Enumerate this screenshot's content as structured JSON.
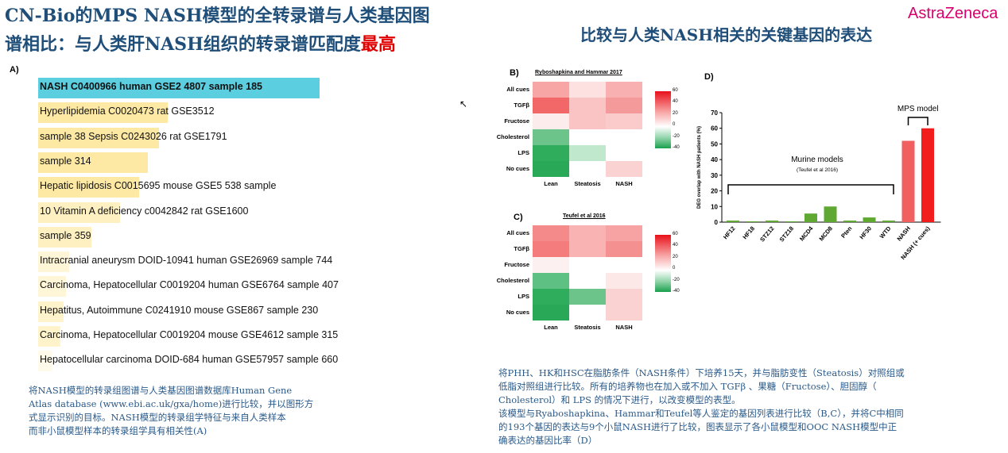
{
  "header": {
    "left_title_line1": "CN-Bio的MPS NASH模型的全转录谱与人类基因图",
    "left_title_line2": "谱相比：与人类肝NASH组织的转录谱匹配度",
    "left_title_highlight": "最高",
    "right_title": "比较与人类NASH相关的关键基因的表达",
    "logo": "AstraZeneca"
  },
  "panel_a": {
    "label": "A)",
    "rows": [
      {
        "text": "NASH C0400966 human GSE2 4807 sample 185",
        "fill": 1.0,
        "color": "#5bcfe0"
      },
      {
        "text": "Hyperlipidemia C0020473 rat GSE3512",
        "fill": 0.46,
        "color": "#fde9a4"
      },
      {
        "text": "sample 38  Sepsis C0243026 rat GSE1791",
        "fill": 0.43,
        "color": "#fde9a4"
      },
      {
        "text": "sample 314",
        "fill": 0.39,
        "color": "#fde9a4"
      },
      {
        "text": "Hepatic lipidosis C0015695 mouse GSE5 538 sample",
        "fill": 0.36,
        "color": "#fde9a4"
      },
      {
        "text": "10  Vitamin A deficiency c0042842 rat GSE1600",
        "fill": 0.29,
        "color": "#fef0c0"
      },
      {
        "text": "sample 359",
        "fill": 0.19,
        "color": "#fef0c0"
      },
      {
        "text": "Intracranial aneurysm DOID-10941 human GSE26969 sample 744",
        "fill": 0.11,
        "color": "#fff6d8"
      },
      {
        "text": "Carcinoma, Hepatocellular C0019204 human GSE6764 sample 407",
        "fill": 0.1,
        "color": "#fff6d8"
      },
      {
        "text": "Hepatitus, Autoimmune C0241910 mouse GSE867 sample 230",
        "fill": 0.09,
        "color": "#fff3cc"
      },
      {
        "text": "Carcinoma, Hepatocellular C0019204 mouse GSE4612 sample 315",
        "fill": 0.08,
        "color": "#fff3cc"
      },
      {
        "text": "Hepatocellular carcinoma DOID-684 human GSE57957 sample 660",
        "fill": 0.05,
        "color": "#fffaea"
      }
    ],
    "caption": [
      "将NASH模型的转录组图谱与人类基因图谱数据库Human Gene",
      "Atlas database (www.ebi.ac.uk/gxa/home)进行比较，并以图形方",
      "式显示识别的目标。NASH模型的转录组学特征与来自人类样本",
      "而非小鼠模型样本的转录组学具有相关性(A)"
    ]
  },
  "panel_b": {
    "label": "B)",
    "title": "Ryboshapkina and Hammar 2017",
    "rows": [
      "All cues",
      "TGFβ",
      "Fructose",
      "Cholesterol",
      "LPS",
      "No cues"
    ],
    "cols": [
      "Lean",
      "Steatosis",
      "NASH"
    ],
    "colors": [
      [
        "#f7a5a5",
        "#fde0e0",
        "#f8b0b0"
      ],
      [
        "#f26868",
        "#fbc4c4",
        "#f59a9a"
      ],
      [
        "#fdecec",
        "#fbc4c4",
        "#fbcaca"
      ],
      [
        "#6cc48a",
        "#ffffff",
        "#ffffff"
      ],
      [
        "#2fac5c",
        "#bfe8cd",
        "#ffffff"
      ],
      [
        "#29a957",
        "#ffffff",
        "#fbd2d2"
      ]
    ],
    "colorbar_ticks": [
      "60",
      "40",
      "20",
      "0",
      "-20",
      "-40"
    ]
  },
  "panel_c": {
    "label": "C)",
    "title": "Teufel et al 2016",
    "rows": [
      "All cues",
      "TGFβ",
      "Fructose",
      "Cholesterol",
      "LPS",
      "No cues"
    ],
    "cols": [
      "Lean",
      "Steatosis",
      "NASH"
    ],
    "colors": [
      [
        "#f48a8a",
        "#f9b3b3",
        "#f7a3a3"
      ],
      [
        "#f47c7c",
        "#f9b3b3",
        "#f59090"
      ],
      [
        "#fdf0f0",
        "#ffffff",
        "#ffffff"
      ],
      [
        "#5ec183",
        "#ffffff",
        "#fde8e8"
      ],
      [
        "#2fac5c",
        "#6cc48a",
        "#fbd2d2"
      ],
      [
        "#29a957",
        "#ffffff",
        "#fbd2d2"
      ]
    ],
    "colorbar_ticks": [
      "60",
      "40",
      "20",
      "0",
      "-20",
      "-40"
    ]
  },
  "panel_d": {
    "label": "D)"
  },
  "chart_data": {
    "type": "bar",
    "categories": [
      "HF12",
      "HF18",
      "STZ12",
      "STZ18",
      "MCD4",
      "MCD8",
      "Pten",
      "HF30",
      "WTD",
      "NASH",
      "NASH (+ cues)"
    ],
    "values": [
      1,
      0.5,
      1,
      0.5,
      5.5,
      10,
      1,
      3,
      1,
      52,
      60
    ],
    "colors": [
      "#5fa832",
      "#5fa832",
      "#5fa832",
      "#5fa832",
      "#5fa832",
      "#5fa832",
      "#5fa832",
      "#5fa832",
      "#5fa832",
      "#f25f5f",
      "#f21e1e"
    ],
    "ylabel": "DEG overlap with NASH patients (%)",
    "ylim": [
      0,
      70
    ],
    "yticks": [
      0,
      10,
      20,
      30,
      40,
      50,
      60,
      70
    ],
    "annotations": {
      "murine": "Murine models",
      "murine_ref": "(Teufel et al 2016)",
      "mps": "MPS model"
    }
  },
  "right_caption": [
    "将PHH、HK和HSC在脂肪条件（NASH条件）下培养15天，并与脂肪变性（Steatosis）对照组或",
    "低脂对照组进行比较。所有的培养物也在加入或不加入 TGFβ 、果糖（Fructose）、胆固醇（",
    "Cholesterol）和 LPS 的情况下进行，以改变模型的表型。",
    "该模型与Ryaboshapkina、Hammar和Teufel等人鉴定的基因列表进行比较（B,C），并将C中相同",
    "的193个基因的表达与9个小鼠NASH进行了比较，图表显示了各小鼠模型和OOC NASH模型中正",
    "确表达的基因比率（D）"
  ]
}
